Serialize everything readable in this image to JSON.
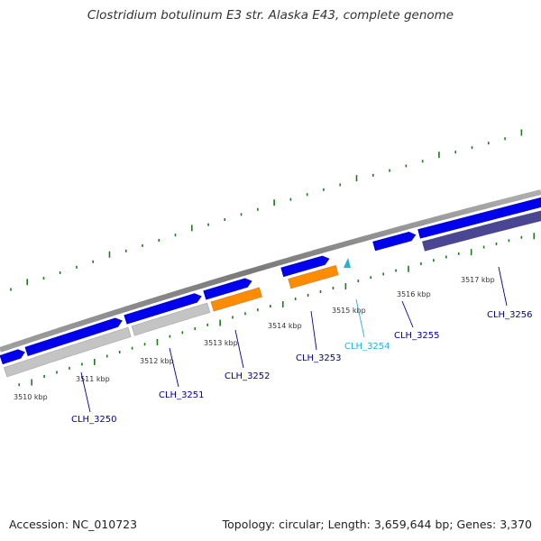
{
  "title": "Clostridium botulinum E3 str. Alaska E43, complete genome",
  "footer": {
    "accession": "Accession: NC_010723",
    "summary": "Topology: circular; Length: 3,659,644 bp; Genes: 3,370"
  },
  "colors": {
    "backbone": "#8c8c8c",
    "cds_forward": "#0000ee",
    "cds_reverse_gray": "#c4c4c4",
    "cds_reverse_orange": "#ff8c00",
    "cds_reverse_purple": "#4b4694",
    "gene_label": "#000099",
    "gene_label_highlight": "#2aaed6",
    "tick": "#1b7a1b"
  },
  "scale": {
    "unit": "kbp",
    "ticks": [
      "3510 kbp",
      "3511 kbp",
      "3512 kbp",
      "3513 kbp",
      "3514 kbp",
      "3515 kbp",
      "3516 kbp",
      "3517 kbp"
    ]
  },
  "genes": [
    {
      "label": "CLH_3250",
      "strand": "reverse",
      "color": "gray"
    },
    {
      "label": "CLH_3251",
      "strand": "reverse",
      "color": "gray"
    },
    {
      "label": "CLH_3252",
      "strand": "reverse",
      "color": "orange"
    },
    {
      "label": "CLH_3253",
      "strand": "reverse",
      "color": "orange"
    },
    {
      "label": "CLH_3254",
      "strand": "forward",
      "color": "cyan"
    },
    {
      "label": "CLH_3255",
      "strand": "forward",
      "color": "blue"
    },
    {
      "label": "CLH_3256",
      "strand": "reverse",
      "color": "purple"
    }
  ]
}
